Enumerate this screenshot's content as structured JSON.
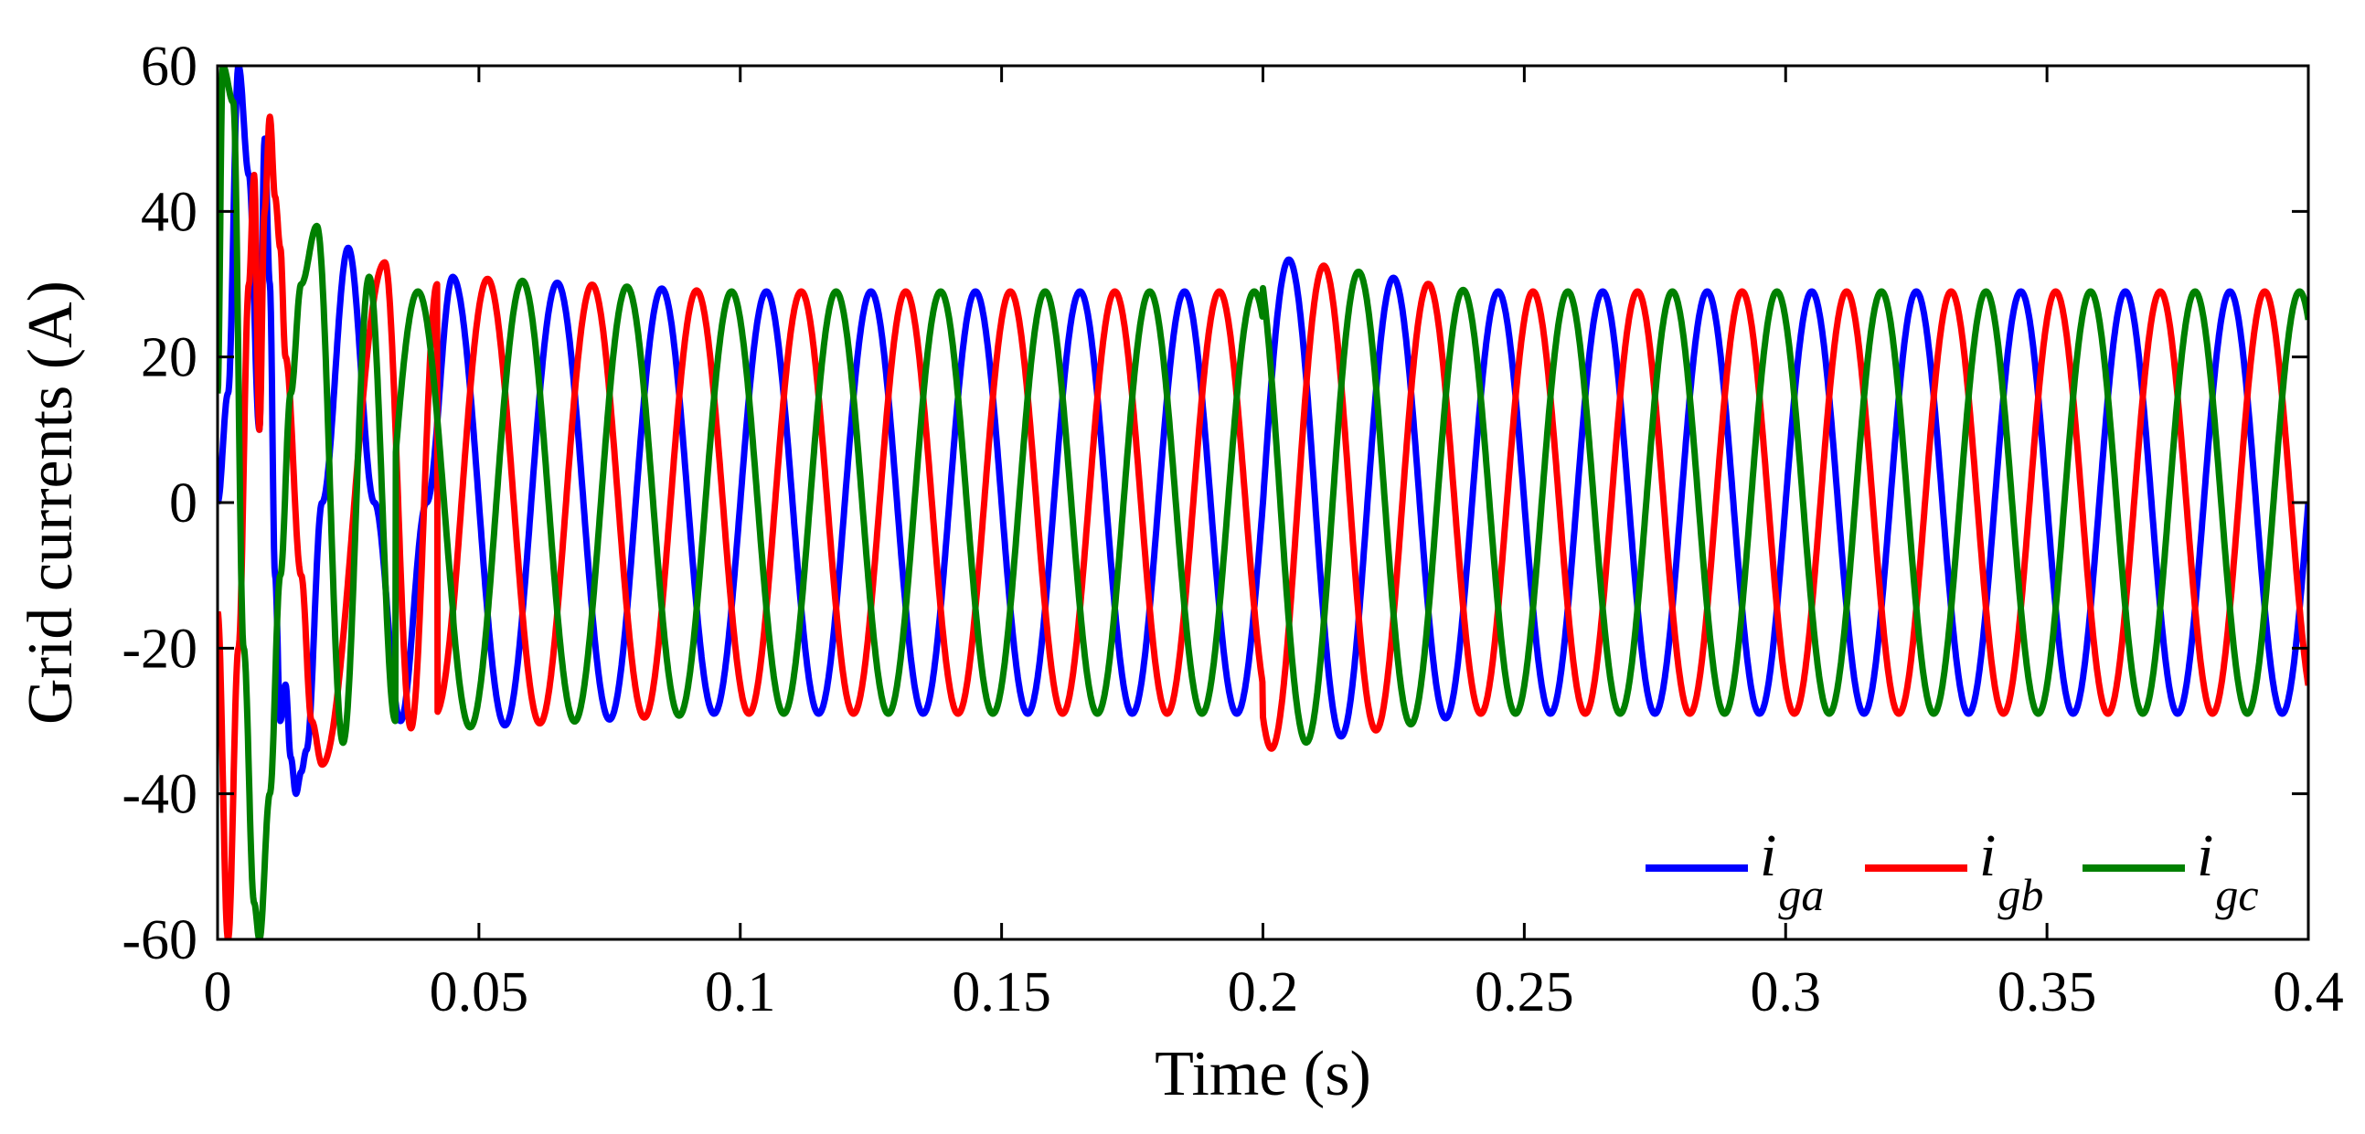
{
  "chart_data": {
    "type": "line",
    "title": "",
    "xlabel": "Time (s)",
    "ylabel": "Grid currents (A)",
    "xlim": [
      0,
      0.4
    ],
    "ylim": [
      -60,
      60
    ],
    "xticks": [
      0,
      0.05,
      0.1,
      0.15,
      0.2,
      0.25,
      0.3,
      0.35,
      0.4
    ],
    "xtick_labels": [
      "0",
      "0.05",
      "0.1",
      "0.15",
      "0.2",
      "0.25",
      "0.3",
      "0.35",
      "0.4"
    ],
    "yticks": [
      60,
      40,
      20,
      0,
      -20,
      -40,
      -60
    ],
    "ytick_labels": [
      "60",
      "40",
      "20",
      "0",
      "-20",
      "-40",
      "-60"
    ],
    "grid": false,
    "legend_position": "bottom-right",
    "frequency_hz": 50,
    "steady_amplitude_a": 29,
    "disturbance_time_s": 0.2,
    "series": [
      {
        "name": "i_ga",
        "label_main": "i",
        "label_sub": "ga",
        "color": "#0000ff",
        "phase_deg": 0,
        "points": [
          [
            0.0,
            0
          ],
          [
            0.002,
            15
          ],
          [
            0.004,
            60
          ],
          [
            0.006,
            45
          ],
          [
            0.008,
            10
          ],
          [
            0.009,
            50
          ],
          [
            0.01,
            30
          ],
          [
            0.011,
            -10
          ],
          [
            0.012,
            -30
          ],
          [
            0.013,
            -25
          ],
          [
            0.014,
            -35
          ],
          [
            0.015,
            -40
          ],
          [
            0.016,
            -37
          ],
          [
            0.017,
            -34
          ],
          [
            0.02,
            0
          ],
          [
            0.025,
            35
          ],
          [
            0.03,
            0
          ],
          [
            0.035,
            -30
          ],
          [
            0.04,
            0
          ],
          [
            0.045,
            31
          ],
          [
            0.05,
            0
          ],
          [
            0.055,
            -29
          ],
          [
            0.06,
            0
          ],
          [
            0.065,
            29
          ],
          [
            0.07,
            0
          ],
          [
            0.075,
            -28
          ],
          [
            0.08,
            0
          ],
          [
            0.085,
            28
          ],
          [
            0.2,
            0
          ],
          [
            0.205,
            34
          ],
          [
            0.21,
            0
          ],
          [
            0.215,
            -26
          ],
          [
            0.22,
            0
          ],
          [
            0.225,
            31
          ],
          [
            0.23,
            0
          ],
          [
            0.235,
            -28
          ],
          [
            0.24,
            0
          ],
          [
            0.245,
            29
          ],
          [
            0.4,
            0
          ]
        ]
      },
      {
        "name": "i_gb",
        "label_main": "i",
        "label_sub": "gb",
        "color": "#ff0000",
        "phase_deg": -120,
        "points": [
          [
            0.0,
            -15
          ],
          [
            0.002,
            -60
          ],
          [
            0.004,
            -20
          ],
          [
            0.006,
            30
          ],
          [
            0.007,
            45
          ],
          [
            0.008,
            10
          ],
          [
            0.009,
            40
          ],
          [
            0.01,
            53
          ],
          [
            0.011,
            42
          ],
          [
            0.012,
            35
          ],
          [
            0.013,
            20
          ],
          [
            0.016,
            -10
          ],
          [
            0.018,
            -30
          ],
          [
            0.02,
            -36
          ],
          [
            0.032,
            33
          ],
          [
            0.037,
            -31
          ],
          [
            0.042,
            30
          ],
          [
            0.2,
            -20
          ],
          [
            0.201,
            -34
          ],
          [
            0.206,
            0
          ],
          [
            0.211,
            33
          ],
          [
            0.216,
            0
          ],
          [
            0.221,
            -31
          ],
          [
            0.226,
            0
          ],
          [
            0.231,
            30
          ],
          [
            0.4,
            -25
          ]
        ]
      },
      {
        "name": "i_gc",
        "label_main": "i",
        "label_sub": "gc",
        "color": "#008000",
        "phase_deg": 120,
        "points": [
          [
            0.0,
            15
          ],
          [
            0.001,
            60
          ],
          [
            0.003,
            55
          ],
          [
            0.005,
            -20
          ],
          [
            0.007,
            -55
          ],
          [
            0.008,
            -60
          ],
          [
            0.01,
            -40
          ],
          [
            0.012,
            -10
          ],
          [
            0.014,
            15
          ],
          [
            0.016,
            30
          ],
          [
            0.019,
            38
          ],
          [
            0.024,
            -33
          ],
          [
            0.029,
            31
          ],
          [
            0.034,
            -30
          ],
          [
            0.2,
            28
          ],
          [
            0.201,
            30
          ],
          [
            0.203,
            24
          ],
          [
            0.208,
            0
          ],
          [
            0.213,
            -33
          ],
          [
            0.218,
            0
          ],
          [
            0.219,
            31
          ],
          [
            0.224,
            0
          ],
          [
            0.229,
            -30
          ],
          [
            0.4,
            25
          ]
        ]
      }
    ]
  }
}
